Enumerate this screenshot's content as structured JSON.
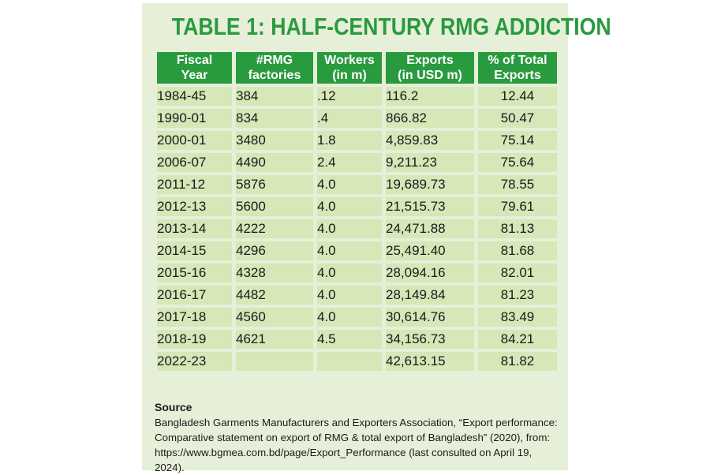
{
  "title": "TABLE 1: HALF-CENTURY RMG ADDICTION",
  "table": {
    "headers": {
      "year_line1": "Fiscal",
      "year_line2": "Year",
      "factories_line1": "#RMG",
      "factories_line2": "factories",
      "workers_line1": "Workers",
      "workers_line2": "(in m)",
      "exports_line1": "Exports",
      "exports_line2": "(in USD m)",
      "pct_line1": "% of Total",
      "pct_line2": "Exports"
    },
    "rows": [
      {
        "year": "1984-45",
        "factories": "384",
        "workers": ".12",
        "exports": "116.2",
        "pct": "12.44"
      },
      {
        "year": "1990-01",
        "factories": "834",
        "workers": ".4",
        "exports": "866.82",
        "pct": "50.47"
      },
      {
        "year": "2000-01",
        "factories": "3480",
        "workers": "1.8",
        "exports": "4,859.83",
        "pct": "75.14"
      },
      {
        "year": "2006-07",
        "factories": "4490",
        "workers": "2.4",
        "exports": "9,211.23",
        "pct": "75.64"
      },
      {
        "year": "2011-12",
        "factories": "5876",
        "workers": "4.0",
        "exports": "19,689.73",
        "pct": "78.55"
      },
      {
        "year": "2012-13",
        "factories": "5600",
        "workers": "4.0",
        "exports": "21,515.73",
        "pct": "79.61"
      },
      {
        "year": "2013-14",
        "factories": "4222",
        "workers": "4.0",
        "exports": "24,471.88",
        "pct": "81.13"
      },
      {
        "year": "2014-15",
        "factories": "4296",
        "workers": "4.0",
        "exports": "25,491.40",
        "pct": "81.68"
      },
      {
        "year": "2015-16",
        "factories": "4328",
        "workers": "4.0",
        "exports": "28,094.16",
        "pct": "82.01"
      },
      {
        "year": "2016-17",
        "factories": "4482",
        "workers": "4.0",
        "exports": "28,149.84",
        "pct": "81.23"
      },
      {
        "year": "2017-18",
        "factories": "4560",
        "workers": "4.0",
        "exports": "30,614.76",
        "pct": "83.49"
      },
      {
        "year": "2018-19",
        "factories": "4621",
        "workers": "4.5",
        "exports": "34,156.73",
        "pct": "84.21"
      },
      {
        "year": "2022-23",
        "factories": "",
        "workers": "",
        "exports": "42,613.15",
        "pct": "81.82"
      }
    ]
  },
  "source": {
    "title": "Source",
    "line1": "Bangladesh Garments Manufacturers and Exporters Association, “Export performance:",
    "line2": "Comparative statement on export of RMG & total export of Bangladesh” (2020), from:",
    "line3": "https://www.bgmea.com.bd/page/Export_Performance (last consulted on April 19, 2024)."
  },
  "colors": {
    "accent_green": "#2a9a3f",
    "card_background": "#e6f0d8",
    "cell_background": "#d6e7b8"
  }
}
